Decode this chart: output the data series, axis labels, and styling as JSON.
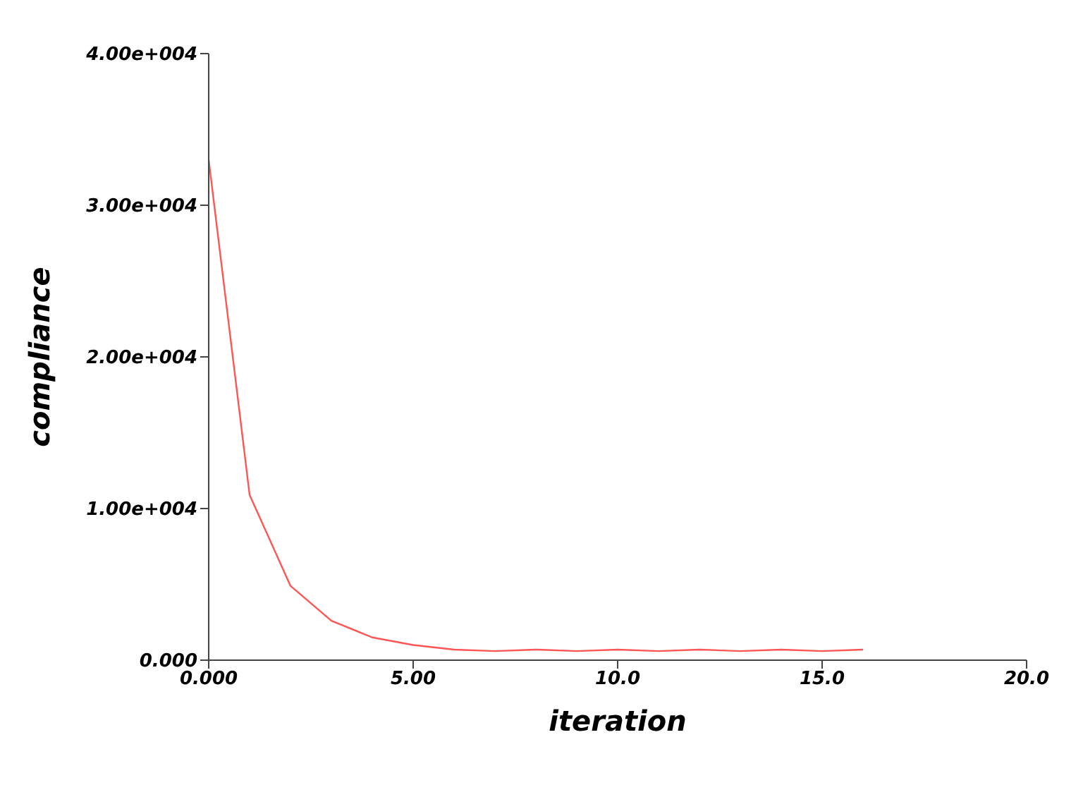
{
  "chart_data": {
    "type": "line",
    "xlabel": "iteration",
    "ylabel": "compliance",
    "x": [
      0,
      1,
      2,
      3,
      4,
      5,
      6,
      7,
      8,
      9,
      10,
      11,
      12,
      13,
      14,
      15,
      16
    ],
    "series": [
      {
        "color": "#ff5555",
        "values": [
          33000,
          10900,
          4900,
          2600,
          1500,
          1000,
          700,
          600,
          700,
          600,
          700,
          600,
          700,
          600,
          700,
          600,
          700
        ]
      }
    ],
    "xlim": [
      0,
      20
    ],
    "xticks": [
      {
        "value": 0,
        "label": "0.000"
      },
      {
        "value": 5,
        "label": "5.00"
      },
      {
        "value": 10,
        "label": "10.0"
      },
      {
        "value": 15,
        "label": "15.0"
      },
      {
        "value": 20,
        "label": "20.0"
      }
    ],
    "ylim": [
      0,
      40000
    ],
    "yticks": [
      {
        "value": 0,
        "label": "0.000"
      },
      {
        "value": 10000,
        "label": "1.00e+004"
      },
      {
        "value": 20000,
        "label": "2.00e+004"
      },
      {
        "value": 30000,
        "label": "3.00e+004"
      },
      {
        "value": 40000,
        "label": "4.00e+004"
      }
    ],
    "grid": false,
    "marker": "none",
    "line_style": "solid"
  }
}
